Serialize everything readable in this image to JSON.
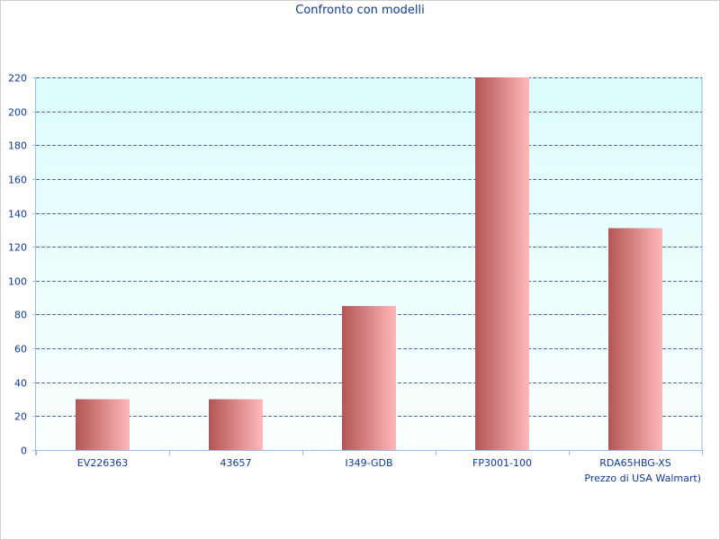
{
  "chart_data": {
    "type": "bar",
    "title": "Confronto con modelli",
    "xlabel": "Prezzo di USA Walmart)",
    "ylabel": "",
    "categories": [
      "EV226363",
      "43657",
      "I349-GDB",
      "FP3001-100",
      "RDA65HBG-XS"
    ],
    "values": [
      30,
      30,
      85,
      220,
      131
    ],
    "ylim": [
      0,
      220
    ],
    "yticks": [
      0,
      20,
      40,
      60,
      80,
      100,
      120,
      140,
      160,
      180,
      200,
      220
    ],
    "grid": true,
    "legend": "none"
  },
  "colors": {
    "text": "#0d3a99",
    "plot_bg_top": "#dcfcfc",
    "plot_bg_bottom": "#fbffff",
    "grid": "#1d3f8f",
    "axis": "#99bbe8",
    "bar_dark": "#b35555",
    "bar_light": "#ffb8b8"
  }
}
